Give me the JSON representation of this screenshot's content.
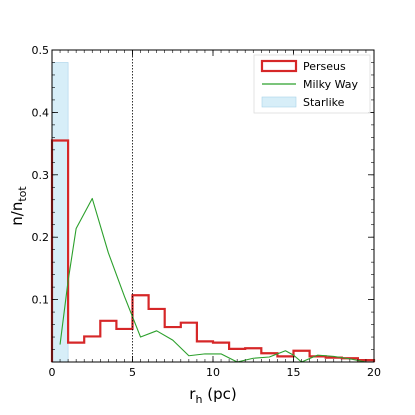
{
  "chart_data": {
    "type": "histogram",
    "xlabel": "r",
    "xlabel_sub": "h",
    "xlabel_unit": " (pc)",
    "ylabel": "n/n",
    "ylabel_sub": "tot",
    "xlim": [
      0,
      20
    ],
    "ylim": [
      0,
      0.5
    ],
    "x_ticks": [
      0,
      5,
      10,
      15,
      20
    ],
    "y_ticks": [
      0.1,
      0.2,
      0.3,
      0.4,
      0.5
    ],
    "x_minor_step": 0.5,
    "y_minor_step": 0.02,
    "reference_line_x": 5,
    "legend_position": "top-right",
    "series": [
      {
        "name": "Perseus",
        "kind": "step",
        "color": "#d62728",
        "bin_edges": [
          0,
          1,
          2,
          3,
          4,
          5,
          6,
          7,
          8,
          9,
          10,
          11,
          12,
          13,
          14,
          15,
          16,
          17,
          18,
          19,
          20
        ],
        "values": [
          0.355,
          0.031,
          0.041,
          0.066,
          0.053,
          0.107,
          0.085,
          0.056,
          0.063,
          0.033,
          0.031,
          0.021,
          0.022,
          0.014,
          0.009,
          0.018,
          0.009,
          0.007,
          0.006,
          0.003
        ]
      },
      {
        "name": "Milky Way",
        "kind": "line",
        "color": "#2ca02c",
        "x": [
          0.5,
          1.0,
          1.5,
          2.5,
          3.5,
          4.5,
          5.5,
          6.5,
          7.5,
          8.5,
          9.5,
          10.5,
          11.5,
          12.5,
          13.5,
          14.5,
          15.0,
          15.5,
          16.5,
          17.5,
          18.5,
          19.5
        ],
        "y": [
          0.028,
          0.13,
          0.214,
          0.262,
          0.175,
          0.105,
          0.04,
          0.05,
          0.035,
          0.01,
          0.013,
          0.013,
          0.0,
          0.006,
          0.008,
          0.018,
          0.011,
          0.0,
          0.011,
          0.009,
          0.005,
          0.0
        ]
      },
      {
        "name": "Starlike",
        "kind": "band",
        "color": "#d7eef8",
        "x_range": [
          0,
          1
        ],
        "height": 0.48
      }
    ]
  }
}
